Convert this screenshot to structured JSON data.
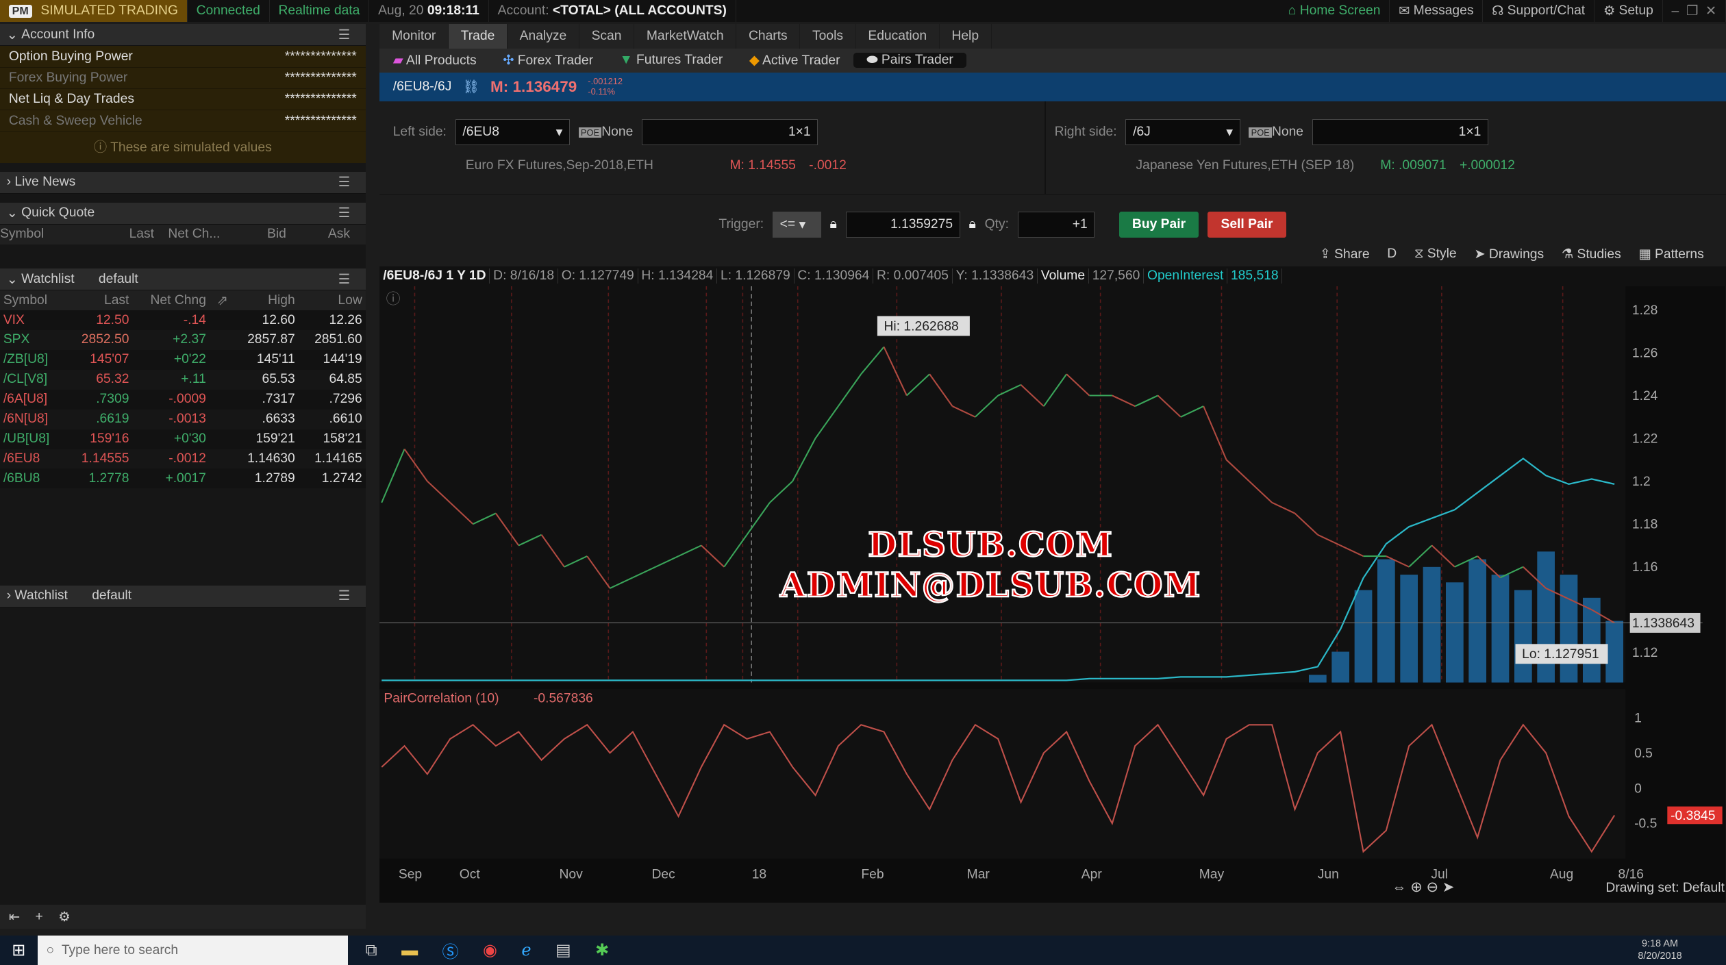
{
  "topbar": {
    "badge": "PM",
    "mode": "SIMULATED TRADING",
    "connection": "Connected",
    "data_feed": "Realtime data",
    "date": "Aug, 20",
    "time": "09:18:11",
    "account_label": "Account:",
    "account": "<TOTAL> (ALL ACCOUNTS)",
    "home": "Home Screen",
    "messages": "Messages",
    "support": "Support/Chat",
    "setup": "Setup"
  },
  "account_info": {
    "title": "Account Info",
    "rows": [
      {
        "label": "Option Buying Power",
        "value": "**************"
      },
      {
        "label": "Forex Buying Power",
        "value": "**************"
      },
      {
        "label": "Net Liq & Day Trades",
        "value": "**************"
      },
      {
        "label": "Cash & Sweep Vehicle",
        "value": "**************"
      }
    ],
    "note": "These are simulated values"
  },
  "live_news": {
    "title": "Live News"
  },
  "quick_quote": {
    "title": "Quick Quote",
    "columns": [
      "Symbol",
      "Last",
      "Net Ch...",
      "Bid",
      "Ask"
    ]
  },
  "watchlist": {
    "title": "Watchlist",
    "name": "default",
    "columns": [
      "Symbol",
      "Last",
      "Net Chng",
      "",
      "High",
      "Low"
    ],
    "rows": [
      {
        "symbol": "VIX",
        "last": "12.50",
        "chg": "-.14",
        "high": "12.60",
        "low": "12.26",
        "sc": "#e05555",
        "lc": "#e05555",
        "cc": "#e05555"
      },
      {
        "symbol": "SPX",
        "last": "2852.50",
        "chg": "+2.37",
        "high": "2857.87",
        "low": "2851.60",
        "sc": "#3fae6a",
        "lc": "#e07060",
        "cc": "#3fae6a"
      },
      {
        "symbol": "/ZB[U8]",
        "last": "145'07",
        "chg": "+0'22",
        "high": "145'11",
        "low": "144'19",
        "sc": "#3fae6a",
        "lc": "#e05555",
        "cc": "#3fae6a"
      },
      {
        "symbol": "/CL[V8]",
        "last": "65.32",
        "chg": "+.11",
        "high": "65.53",
        "low": "64.85",
        "sc": "#3fae6a",
        "lc": "#e05555",
        "cc": "#3fae6a"
      },
      {
        "symbol": "/6A[U8]",
        "last": ".7309",
        "chg": "-.0009",
        "high": ".7317",
        "low": ".7296",
        "sc": "#e05555",
        "lc": "#3fae6a",
        "cc": "#e05555"
      },
      {
        "symbol": "/6N[U8]",
        "last": ".6619",
        "chg": "-.0013",
        "high": ".6633",
        "low": ".6610",
        "sc": "#e05555",
        "lc": "#3fae6a",
        "cc": "#e05555"
      },
      {
        "symbol": "/UB[U8]",
        "last": "159'16",
        "chg": "+0'30",
        "high": "159'21",
        "low": "158'21",
        "sc": "#3fae6a",
        "lc": "#e05555",
        "cc": "#3fae6a"
      },
      {
        "symbol": "/6EU8",
        "last": "1.14555",
        "chg": "-.0012",
        "high": "1.14630",
        "low": "1.14165",
        "sc": "#e05555",
        "lc": "#e05555",
        "cc": "#e05555"
      },
      {
        "symbol": "/6BU8",
        "last": "1.2778",
        "chg": "+.0017",
        "high": "1.2789",
        "low": "1.2742",
        "sc": "#3fae6a",
        "lc": "#3fae6a",
        "cc": "#3fae6a"
      }
    ]
  },
  "watchlist2": {
    "title": "Watchlist",
    "name": "default"
  },
  "main_tabs": [
    "Monitor",
    "Trade",
    "Analyze",
    "Scan",
    "MarketWatch",
    "Charts",
    "Tools",
    "Education",
    "Help"
  ],
  "active_tab": "Trade",
  "sub_tabs": [
    "All Products",
    "Forex Trader",
    "Futures Trader",
    "Active Trader",
    "Pairs Trader"
  ],
  "active_sub_tab": "Pairs Trader",
  "symbol_bar": {
    "symbol": "/6EU8-/6J",
    "mark": "M: 1.136479",
    "change": "-.001212",
    "pct": "-0.11%"
  },
  "pair": {
    "left": {
      "label": "Left side:",
      "symbol": "/6EU8",
      "pos_effect": "None",
      "ratio": "1×1",
      "description": "Euro FX Futures,Sep-2018,ETH",
      "mark": "M: 1.14555",
      "change": "-.0012"
    },
    "right": {
      "label": "Right side:",
      "symbol": "/6J",
      "pos_effect": "None",
      "ratio": "1×1",
      "description": "Japanese Yen Futures,ETH (SEP 18)",
      "mark": "M: .009071",
      "change": "+.000012"
    },
    "trigger_label": "Trigger:",
    "trigger_op": "<=",
    "trigger_value": "1.1359275",
    "qty_label": "Qty:",
    "qty": "+1",
    "buy": "Buy Pair",
    "sell": "Sell Pair"
  },
  "chart_toolbar": [
    "Share",
    "D",
    "Style",
    "Drawings",
    "Studies",
    "Patterns"
  ],
  "chart_info": {
    "symbol": "/6EU8-/6J 1 Y 1D",
    "d": "D: 8/16/18",
    "o": "O: 1.127749",
    "h": "H: 1.134284",
    "l": "L: 1.126879",
    "c": "C: 1.130964",
    "r": "R: 0.007405",
    "y": "Y: 1.1338643",
    "vol_label": "Volume",
    "volume": "127,560",
    "oi_label": "OpenInterest",
    "oi": "185,518"
  },
  "chart_data": [
    {
      "type": "line",
      "title": "/6EU8-/6J 1 Y 1D",
      "ylim": [
        1.106,
        1.291
      ],
      "yticks": [
        "1.28",
        "1.26",
        "1.24",
        "1.22",
        "1.2",
        "1.18",
        "1.16",
        "1.12"
      ],
      "xticks": [
        "Sep",
        "Oct",
        "Nov",
        "Dec",
        "18",
        "Feb",
        "Mar",
        "Apr",
        "May",
        "Jun",
        "Jul",
        "Aug",
        "8/16"
      ],
      "hi_label": "Hi: 1.262688",
      "lo_label": "Lo: 1.127951",
      "last_label": "1.1338643",
      "series": [
        {
          "values": [
            1.19,
            1.215,
            1.2,
            1.19,
            1.18,
            1.185,
            1.17,
            1.175,
            1.16,
            1.165,
            1.15,
            1.155,
            1.16,
            1.165,
            1.17,
            1.16,
            1.175,
            1.19,
            1.2,
            1.22,
            1.235,
            1.25,
            1.2627,
            1.24,
            1.25,
            1.235,
            1.23,
            1.24,
            1.245,
            1.235,
            1.25,
            1.24,
            1.24,
            1.235,
            1.24,
            1.23,
            1.235,
            1.21,
            1.2,
            1.19,
            1.185,
            1.175,
            1.17,
            1.165,
            1.165,
            1.16,
            1.17,
            1.16,
            1.165,
            1.155,
            1.16,
            1.15,
            1.145,
            1.14,
            1.1338643
          ]
        }
      ],
      "open_interest_trace": [
        0,
        0,
        0,
        0,
        0,
        0,
        0,
        0,
        0,
        0,
        0,
        0,
        0,
        0,
        0,
        0,
        0,
        0,
        0,
        0,
        0,
        0,
        0,
        0,
        0,
        0,
        0,
        0,
        0,
        0,
        0,
        1,
        1,
        1,
        1,
        2,
        2,
        2,
        3,
        4,
        5,
        8,
        30,
        60,
        80,
        90,
        95,
        100,
        110,
        120,
        130,
        120,
        115,
        118,
        115
      ],
      "volume_trace": [
        0,
        0,
        0,
        0,
        0,
        0,
        0,
        0,
        0,
        0,
        0,
        0,
        0,
        0,
        0,
        0,
        0,
        0,
        0,
        0,
        0,
        0,
        0,
        0,
        0,
        0,
        0,
        0,
        0,
        0,
        0,
        0,
        0,
        0,
        0,
        0,
        0,
        0,
        0,
        0,
        0,
        5,
        20,
        60,
        80,
        70,
        75,
        65,
        80,
        70,
        60,
        85,
        70,
        55,
        40
      ]
    },
    {
      "type": "line",
      "title": "PairCorrelation (10)",
      "value_label": "-0.567836",
      "ylim": [
        -1,
        1
      ],
      "yticks": [
        "1",
        "0.5",
        "0",
        "-0.5"
      ],
      "last_label": "-0.3845",
      "series": [
        {
          "values": [
            0.3,
            0.6,
            0.2,
            0.7,
            0.9,
            0.6,
            0.8,
            0.4,
            0.7,
            0.9,
            0.5,
            0.8,
            0.2,
            -0.4,
            0.3,
            0.9,
            0.7,
            0.8,
            0.3,
            -0.1,
            0.6,
            0.9,
            0.8,
            0.2,
            -0.3,
            0.4,
            0.9,
            0.7,
            -0.2,
            0.5,
            0.8,
            0.1,
            -0.5,
            0.6,
            0.9,
            0.4,
            -0.1,
            0.7,
            0.9,
            0.9,
            -0.3,
            0.5,
            0.8,
            -0.9,
            -0.6,
            0.6,
            0.9,
            0.1,
            -0.7,
            0.4,
            0.9,
            0.5,
            -0.4,
            -0.9,
            -0.3845
          ]
        }
      ]
    }
  ],
  "chart_footer": {
    "drawing_set": "Drawing set: Default"
  },
  "watermark": [
    "DLSUB.COM",
    "ADMIN@DLSUB.COM"
  ],
  "taskbar": {
    "search_placeholder": "Type here to search",
    "clock": "9:18 AM",
    "date": "8/20/2018"
  }
}
